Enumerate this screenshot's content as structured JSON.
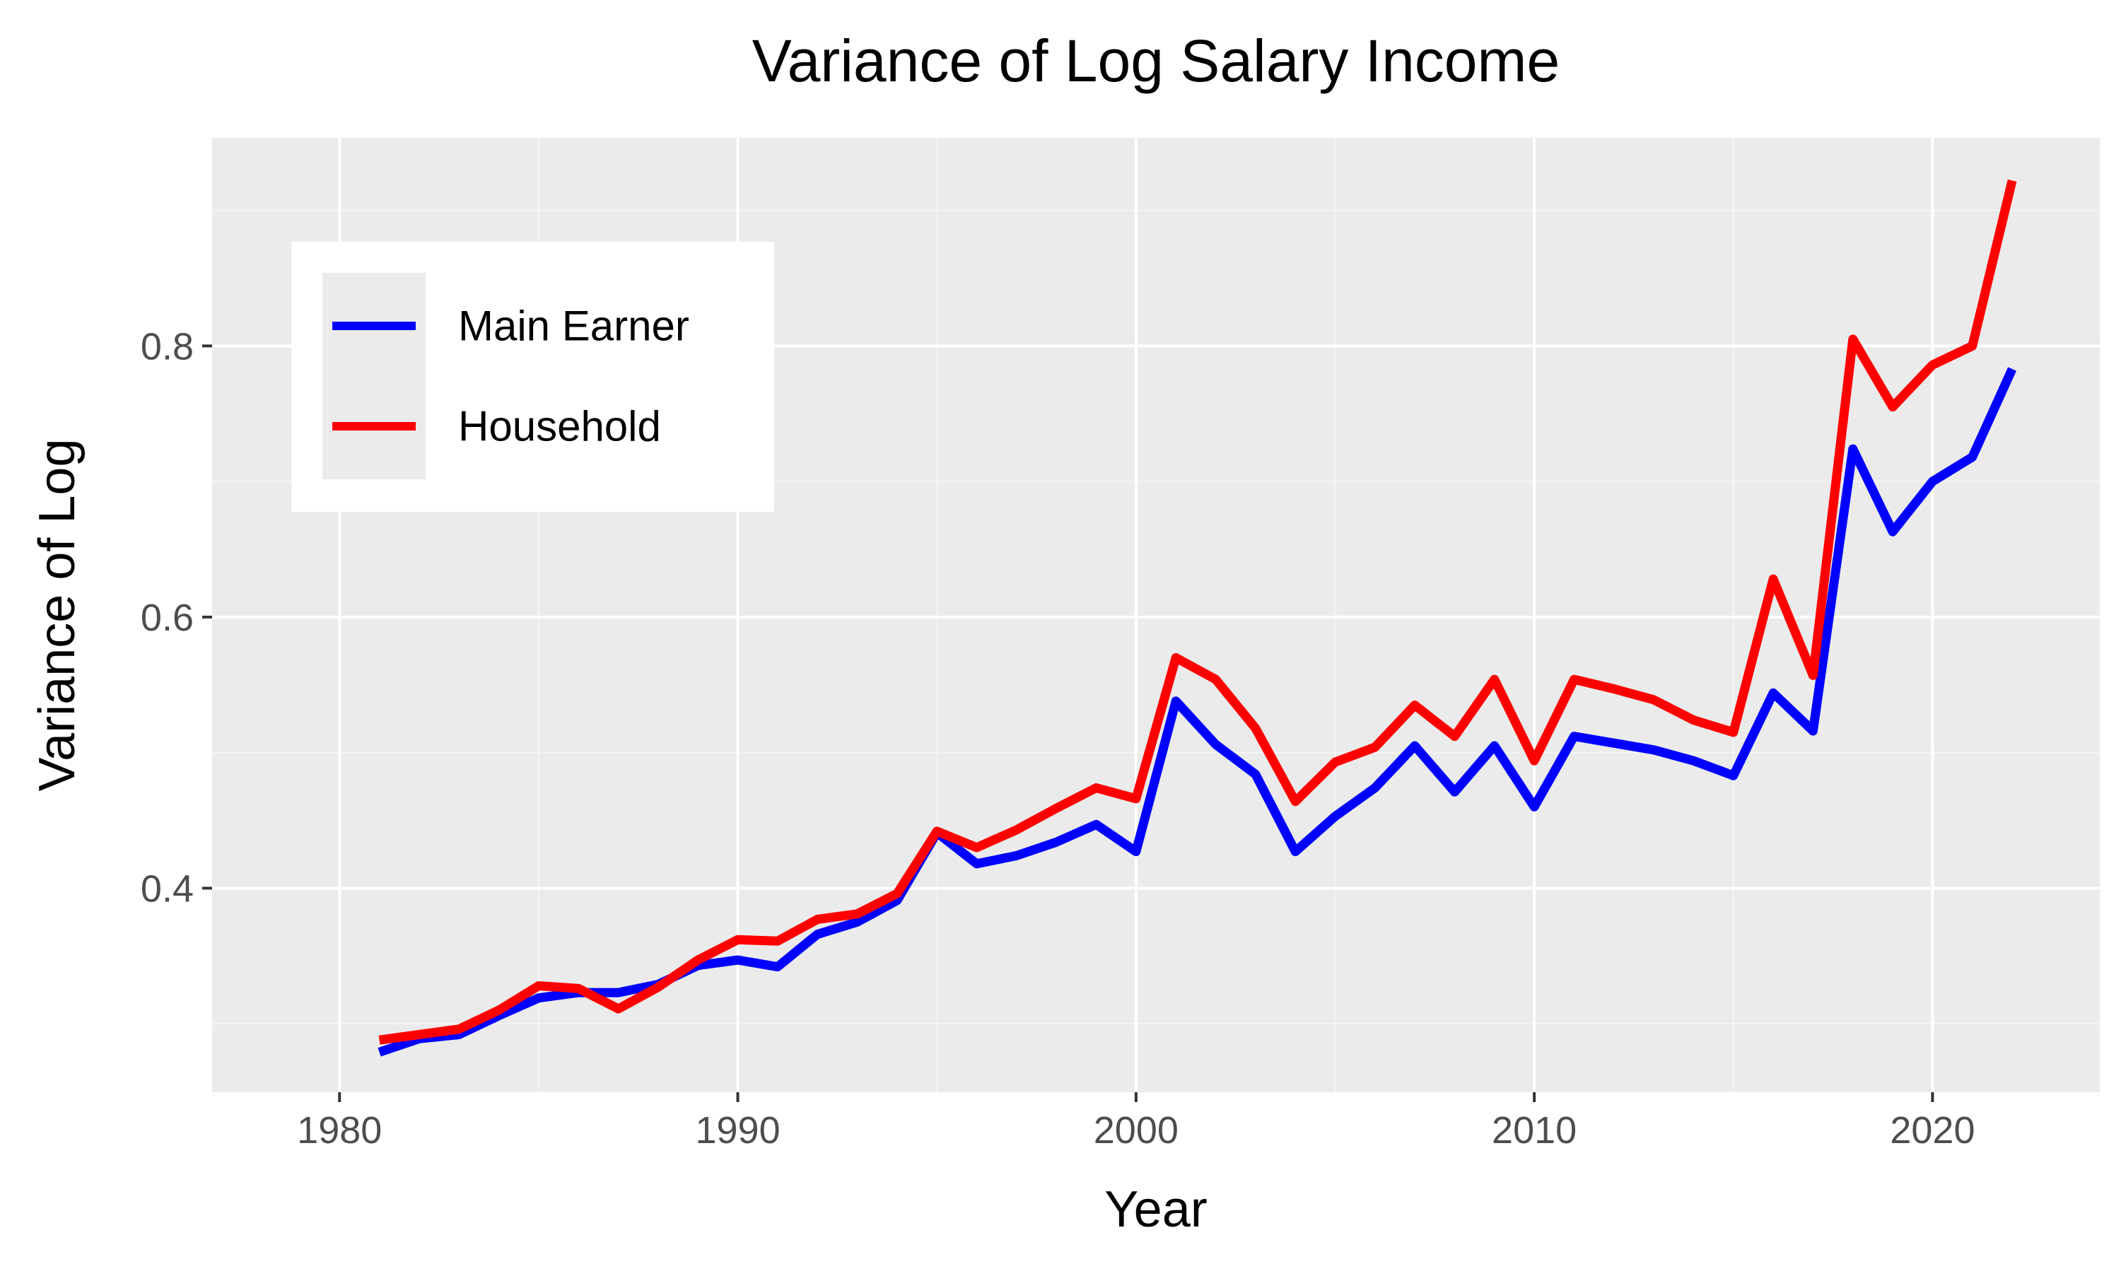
{
  "chart_data": {
    "type": "line",
    "title": "Variance of Log Salary Income",
    "xlabel": "Year",
    "ylabel": "Variance of Log",
    "xlim": [
      1976.8,
      2024.2
    ],
    "ylim": [
      0.2495,
      0.9535
    ],
    "x_ticks": [
      1980,
      1990,
      2000,
      2010,
      2020
    ],
    "y_ticks": [
      0.4,
      0.6,
      0.8
    ],
    "x_minor": [
      1985,
      1995,
      2005,
      2015
    ],
    "y_minor": [
      0.3,
      0.5,
      0.7,
      0.9
    ],
    "grid": true,
    "legend_position": "top-left",
    "x": [
      1981,
      1982,
      1983,
      1984,
      1985,
      1986,
      1987,
      1988,
      1989,
      1990,
      1991,
      1992,
      1993,
      1994,
      1995,
      1996,
      1997,
      1998,
      1999,
      2000,
      2001,
      2002,
      2003,
      2004,
      2005,
      2006,
      2007,
      2008,
      2009,
      2010,
      2011,
      2012,
      2013,
      2014,
      2015,
      2016,
      2017,
      2018,
      2019,
      2020,
      2021,
      2022
    ],
    "series": [
      {
        "name": "Main Earner",
        "color": "#0000ff",
        "values": [
          0.279,
          0.289,
          0.292,
          0.306,
          0.319,
          0.323,
          0.323,
          0.329,
          0.343,
          0.347,
          0.342,
          0.366,
          0.375,
          0.391,
          0.441,
          0.418,
          0.424,
          0.434,
          0.447,
          0.427,
          0.538,
          0.506,
          0.484,
          0.427,
          0.453,
          0.474,
          0.505,
          0.471,
          0.505,
          0.46,
          0.512,
          0.507,
          0.502,
          0.494,
          0.483,
          0.544,
          0.516,
          0.724,
          0.663,
          0.7,
          0.718,
          0.783
        ]
      },
      {
        "name": "Household",
        "color": "#ff0000",
        "values": [
          0.288,
          0.292,
          0.296,
          0.31,
          0.328,
          0.326,
          0.311,
          0.327,
          0.347,
          0.362,
          0.361,
          0.377,
          0.381,
          0.396,
          0.442,
          0.43,
          0.443,
          0.459,
          0.474,
          0.466,
          0.57,
          0.554,
          0.518,
          0.464,
          0.493,
          0.504,
          0.535,
          0.512,
          0.554,
          0.494,
          0.554,
          0.547,
          0.539,
          0.524,
          0.515,
          0.628,
          0.557,
          0.805,
          0.755,
          0.786,
          0.8,
          0.922
        ]
      }
    ]
  },
  "colors": {
    "panel_background": "#ebebeb",
    "grid_major": "#ffffff",
    "grid_minor": "#f5f5f5",
    "tick_label": "#4d4d4d",
    "text": "#000000"
  }
}
